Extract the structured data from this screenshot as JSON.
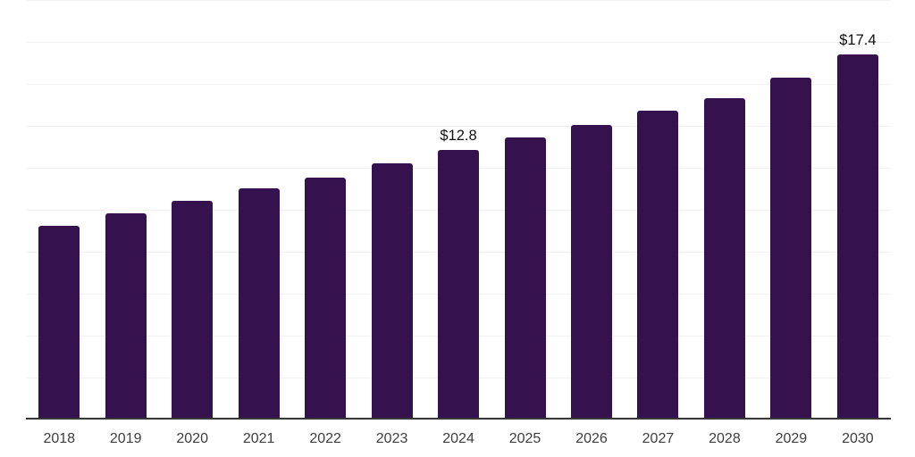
{
  "chart": {
    "colors": {
      "background": "#ffffff",
      "bar": "#35124e",
      "gridline": "#f2f2f2",
      "axis_line": "#383838",
      "tick_label": "#3d3d3d",
      "data_label": "#0e0e0e"
    }
  },
  "chart_data": {
    "type": "bar",
    "title": "",
    "xlabel": "",
    "ylabel": "",
    "categories": [
      "2018",
      "2019",
      "2020",
      "2021",
      "2022",
      "2023",
      "2024",
      "2025",
      "2026",
      "2027",
      "2028",
      "2029",
      "2030"
    ],
    "values": [
      9.2,
      9.8,
      10.4,
      11.0,
      11.5,
      12.2,
      12.8,
      13.4,
      14.0,
      14.7,
      15.3,
      16.3,
      17.4
    ],
    "data_labels": [
      null,
      null,
      null,
      null,
      null,
      null,
      "$12.8",
      null,
      null,
      null,
      null,
      null,
      "$17.4"
    ],
    "ylim": [
      0,
      20
    ],
    "gridline_step": 2,
    "grid": true,
    "legend": false,
    "y_axis_labels_visible": false
  }
}
